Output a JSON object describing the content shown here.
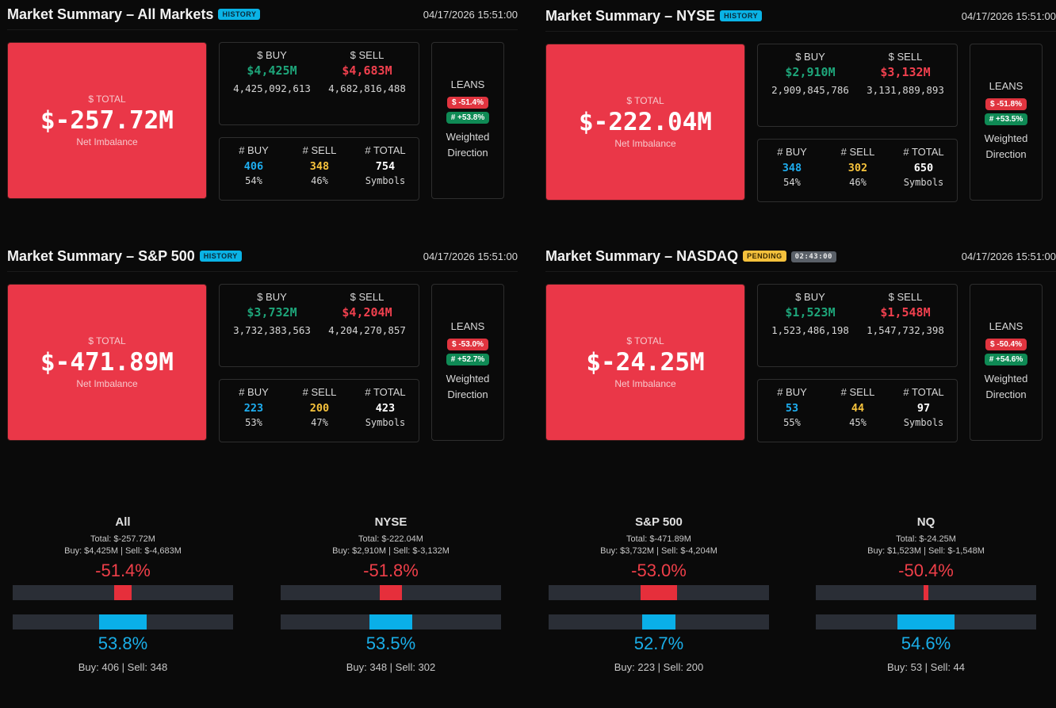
{
  "colors": {
    "background": "#0a0a0a",
    "total_box": "#ea3748",
    "buy_dollar": "#1ea57a",
    "sell_dollar": "#f0404e",
    "buy_count": "#1eaef0",
    "sell_count": "#f7c33c",
    "history_badge": "#0ab3e6",
    "pending_badge": "#f5c13c"
  },
  "panels": [
    {
      "title": "Market Summary – All Markets",
      "badge": "HISTORY",
      "timestamp": "04/17/2026 15:51:00",
      "total_label": "$ TOTAL",
      "total_value": "$-257.72M",
      "total_sub": "Net Imbalance",
      "buy_label": "$ BUY",
      "buy_value": "$4,425M",
      "buy_full": "4,425,092,613",
      "sell_label": "$ SELL",
      "sell_value": "$4,683M",
      "sell_full": "4,682,816,488",
      "count_buy_label": "# BUY",
      "count_buy": "406",
      "count_buy_pct": "54%",
      "count_sell_label": "# SELL",
      "count_sell": "348",
      "count_sell_pct": "46%",
      "count_total_label": "# TOTAL",
      "count_total": "754",
      "count_total_sub": "Symbols",
      "leans_title": "LEANS",
      "lean_dollar": "$ -51.4%",
      "lean_count": "# +53.8%",
      "leans_desc": "Weighted Direction"
    },
    {
      "title": "Market Summary – NYSE",
      "badge": "HISTORY",
      "timestamp": "04/17/2026 15:51:00",
      "total_label": "$ TOTAL",
      "total_value": "$-222.04M",
      "total_sub": "Net Imbalance",
      "buy_label": "$ BUY",
      "buy_value": "$2,910M",
      "buy_full": "2,909,845,786",
      "sell_label": "$ SELL",
      "sell_value": "$3,132M",
      "sell_full": "3,131,889,893",
      "count_buy_label": "# BUY",
      "count_buy": "348",
      "count_buy_pct": "54%",
      "count_sell_label": "# SELL",
      "count_sell": "302",
      "count_sell_pct": "46%",
      "count_total_label": "# TOTAL",
      "count_total": "650",
      "count_total_sub": "Symbols",
      "leans_title": "LEANS",
      "lean_dollar": "$ -51.8%",
      "lean_count": "# +53.5%",
      "leans_desc": "Weighted Direction"
    },
    {
      "title": "Market Summary – S&P 500",
      "badge": "HISTORY",
      "timestamp": "04/17/2026 15:51:00",
      "total_label": "$ TOTAL",
      "total_value": "$-471.89M",
      "total_sub": "Net Imbalance",
      "buy_label": "$ BUY",
      "buy_value": "$3,732M",
      "buy_full": "3,732,383,563",
      "sell_label": "$ SELL",
      "sell_value": "$4,204M",
      "sell_full": "4,204,270,857",
      "count_buy_label": "# BUY",
      "count_buy": "223",
      "count_buy_pct": "53%",
      "count_sell_label": "# SELL",
      "count_sell": "200",
      "count_sell_pct": "47%",
      "count_total_label": "# TOTAL",
      "count_total": "423",
      "count_total_sub": "Symbols",
      "leans_title": "LEANS",
      "lean_dollar": "$ -53.0%",
      "lean_count": "# +52.7%",
      "leans_desc": "Weighted Direction"
    },
    {
      "title": "Market Summary – NASDAQ",
      "badge": "PENDING",
      "timer": "02:43:00",
      "timestamp": "04/17/2026 15:51:00",
      "total_label": "$ TOTAL",
      "total_value": "$-24.25M",
      "total_sub": "Net Imbalance",
      "buy_label": "$ BUY",
      "buy_value": "$1,523M",
      "buy_full": "1,523,486,198",
      "sell_label": "$ SELL",
      "sell_value": "$1,548M",
      "sell_full": "1,547,732,398",
      "count_buy_label": "# BUY",
      "count_buy": "53",
      "count_buy_pct": "55%",
      "count_sell_label": "# SELL",
      "count_sell": "44",
      "count_sell_pct": "45%",
      "count_total_label": "# TOTAL",
      "count_total": "97",
      "count_total_sub": "Symbols",
      "leans_title": "LEANS",
      "lean_dollar": "$ -50.4%",
      "lean_count": "# +54.6%",
      "leans_desc": "Weighted Direction"
    }
  ],
  "gauges": [
    {
      "title": "All",
      "total_line": "Total: $-257.72M",
      "buysell_line": "Buy: $4,425M | Sell: $-4,683M",
      "dollar_pct": "-51.4%",
      "dollar_fraction": 0.514,
      "count_pct": "53.8%",
      "count_fraction": 0.538,
      "footer": "Buy: 406 | Sell: 348"
    },
    {
      "title": "NYSE",
      "total_line": "Total: $-222.04M",
      "buysell_line": "Buy: $2,910M | Sell: $-3,132M",
      "dollar_pct": "-51.8%",
      "dollar_fraction": 0.518,
      "count_pct": "53.5%",
      "count_fraction": 0.535,
      "footer": "Buy: 348 | Sell: 302"
    },
    {
      "title": "S&P 500",
      "total_line": "Total: $-471.89M",
      "buysell_line": "Buy: $3,732M | Sell: $-4,204M",
      "dollar_pct": "-53.0%",
      "dollar_fraction": 0.53,
      "count_pct": "52.7%",
      "count_fraction": 0.527,
      "footer": "Buy: 223 | Sell: 200"
    },
    {
      "title": "NQ",
      "total_line": "Total: $-24.25M",
      "buysell_line": "Buy: $1,523M | Sell: $-1,548M",
      "dollar_pct": "-50.4%",
      "dollar_fraction": 0.504,
      "count_pct": "54.6%",
      "count_fraction": 0.546,
      "footer": "Buy: 53 | Sell: 44"
    }
  ]
}
